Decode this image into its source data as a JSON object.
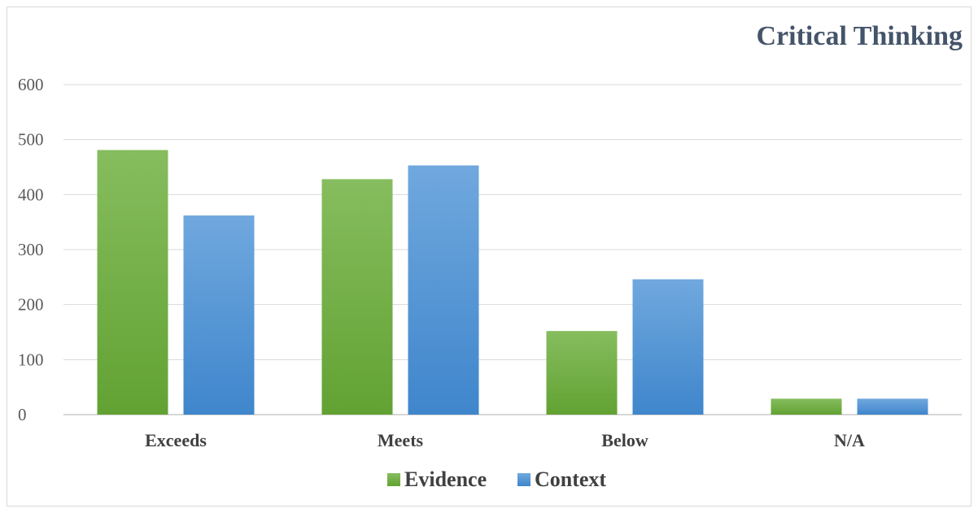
{
  "chart_data": {
    "type": "bar",
    "title": "Critical Thinking",
    "categories": [
      "Exceeds",
      "Meets",
      "Below",
      "N/A"
    ],
    "series": [
      {
        "name": "Evidence",
        "values": [
          481,
          428,
          152,
          29
        ],
        "color": "#6aab3d"
      },
      {
        "name": "Context",
        "values": [
          362,
          453,
          246,
          29
        ],
        "color": "#4a8fd4"
      }
    ],
    "y_ticks": [
      "0",
      "100",
      "200",
      "300",
      "400",
      "500",
      "600"
    ],
    "ylim": [
      0,
      600
    ],
    "grid": true,
    "legend_position": "bottom"
  }
}
